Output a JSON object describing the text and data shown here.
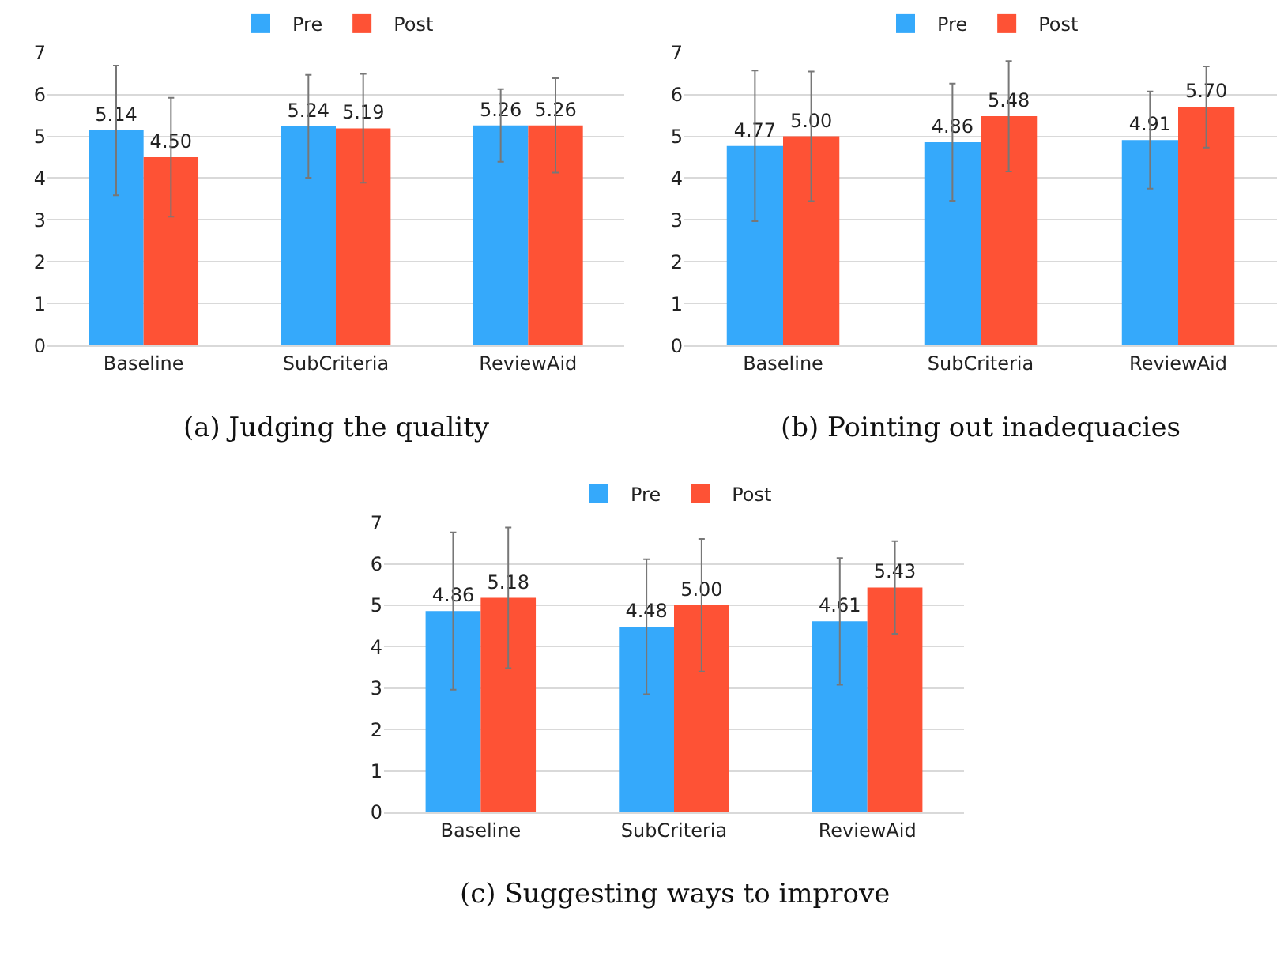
{
  "chart_data": [
    {
      "type": "bar",
      "title": "(a) Judging the quality",
      "categories": [
        "Baseline",
        "SubCriteria",
        "ReviewAid"
      ],
      "ylim": [
        0,
        7
      ],
      "yticks": [
        0,
        1,
        2,
        3,
        4,
        5,
        6,
        7
      ],
      "grid": "y",
      "legend": "top",
      "series": [
        {
          "name": "Pre",
          "color": "#35a9fb",
          "values": [
            5.14,
            5.24,
            5.26
          ],
          "value_labels": [
            "5.14",
            "5.24",
            "5.26"
          ],
          "errors": [
            1.55,
            1.23,
            0.87
          ]
        },
        {
          "name": "Post",
          "color": "#fe5235",
          "values": [
            4.5,
            5.19,
            5.26
          ],
          "value_labels": [
            "4.50",
            "5.19",
            "5.26"
          ],
          "errors": [
            1.42,
            1.3,
            1.13
          ]
        }
      ]
    },
    {
      "type": "bar",
      "title": "(b) Pointing out inadequacies",
      "categories": [
        "Baseline",
        "SubCriteria",
        "ReviewAid"
      ],
      "ylim": [
        0,
        7
      ],
      "yticks": [
        0,
        1,
        2,
        3,
        4,
        5,
        6,
        7
      ],
      "grid": "y",
      "legend": "top",
      "series": [
        {
          "name": "Pre",
          "color": "#35a9fb",
          "values": [
            4.77,
            4.86,
            4.91
          ],
          "value_labels": [
            "4.77",
            "4.86",
            "4.91"
          ],
          "errors": [
            1.8,
            1.4,
            1.16
          ]
        },
        {
          "name": "Post",
          "color": "#fe5235",
          "values": [
            5.0,
            5.48,
            5.7
          ],
          "value_labels": [
            "5.00",
            "5.48",
            "5.70"
          ],
          "errors": [
            1.55,
            1.32,
            0.97
          ]
        }
      ]
    },
    {
      "type": "bar",
      "title": "(c) Suggesting ways to improve",
      "categories": [
        "Baseline",
        "SubCriteria",
        "ReviewAid"
      ],
      "ylim": [
        0,
        7
      ],
      "yticks": [
        0,
        1,
        2,
        3,
        4,
        5,
        6,
        7
      ],
      "grid": "y",
      "legend": "top",
      "series": [
        {
          "name": "Pre",
          "color": "#35a9fb",
          "values": [
            4.86,
            4.48,
            4.61
          ],
          "value_labels": [
            "4.86",
            "4.48",
            "4.61"
          ],
          "errors": [
            1.9,
            1.63,
            1.53
          ]
        },
        {
          "name": "Post",
          "color": "#fe5235",
          "values": [
            5.18,
            5.0,
            5.43
          ],
          "value_labels": [
            "5.18",
            "5.00",
            "5.43"
          ],
          "errors": [
            1.7,
            1.6,
            1.12
          ]
        }
      ]
    }
  ]
}
